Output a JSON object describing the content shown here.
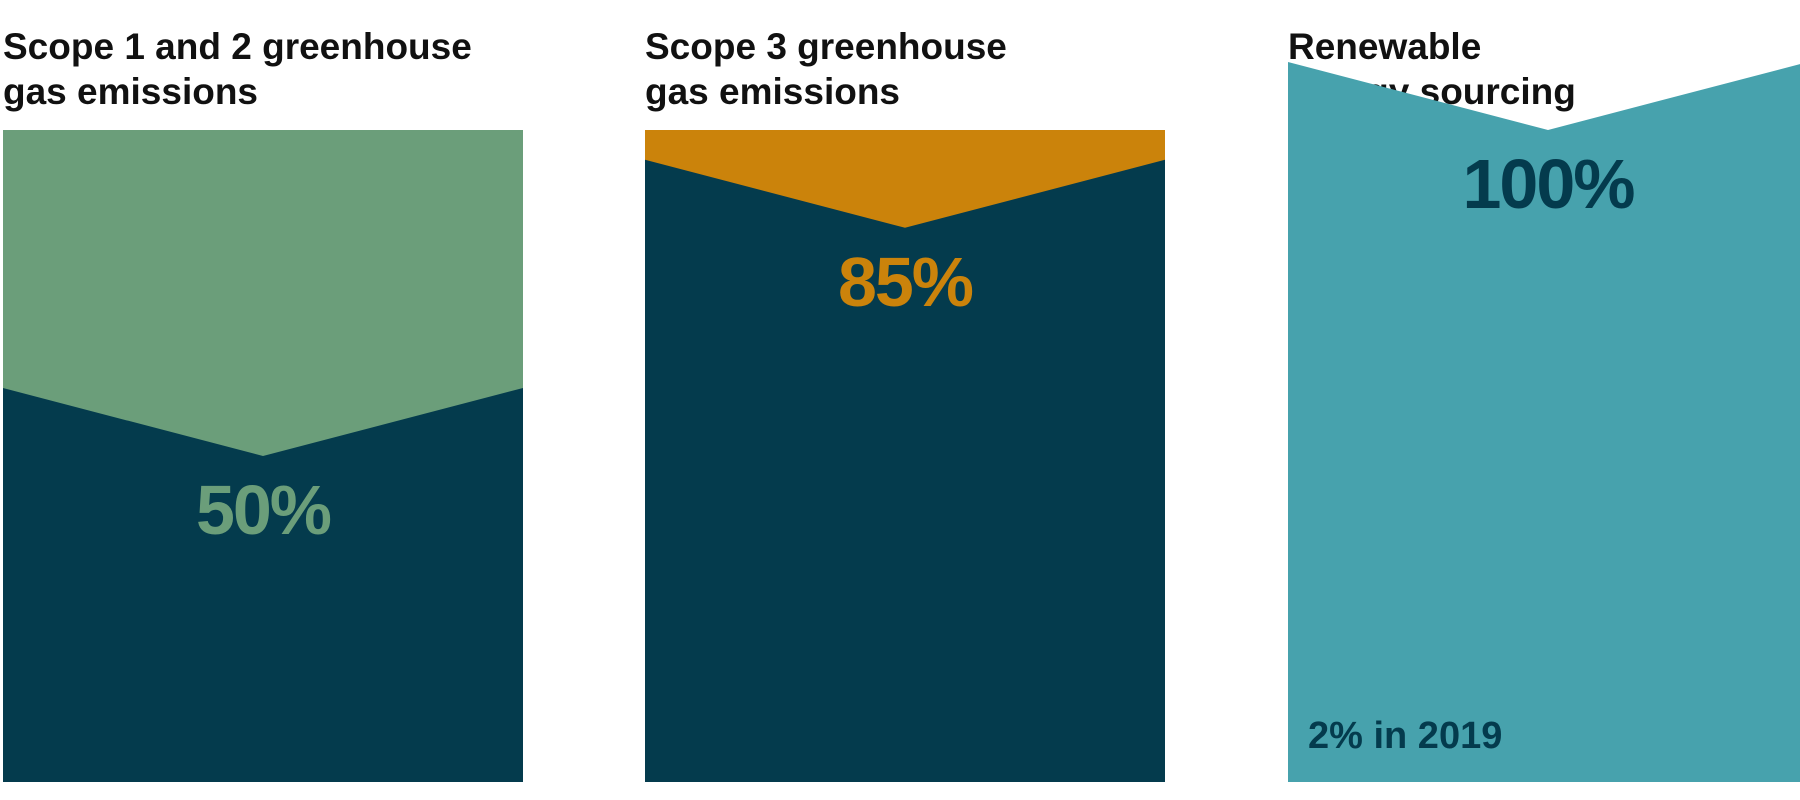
{
  "chart_data": [
    {
      "type": "area",
      "title_lines": [
        "Scope 1 and 2 greenhouse",
        "gas emissions"
      ],
      "value_percent": 50,
      "value_label": "50%",
      "note": "",
      "colors": {
        "fill": "#043b4d",
        "top": "#6b9e7a",
        "label": "#6b9e7a"
      }
    },
    {
      "type": "area",
      "title_lines": [
        "Scope 3 greenhouse",
        "gas emissions"
      ],
      "value_percent": 85,
      "value_label": "85%",
      "note": "",
      "colors": {
        "fill": "#043b4d",
        "top": "#cb830b",
        "label": "#cb830b"
      }
    },
    {
      "type": "area",
      "title_lines": [
        "Renewable",
        "energy sourcing"
      ],
      "value_percent": 100,
      "value_label": "100%",
      "note": "2% in 2019",
      "colors": {
        "fill": "#47a2ad",
        "top": "#043b4d",
        "label": "#043b4d"
      }
    }
  ]
}
